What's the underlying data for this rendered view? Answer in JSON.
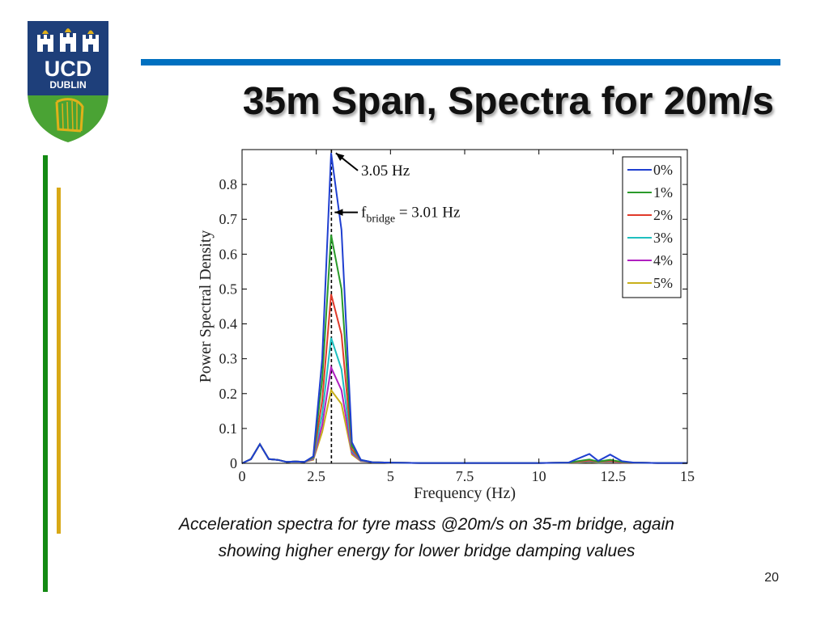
{
  "slide": {
    "title": "35m Span, Spectra for 20m/s",
    "caption_line1": "Acceleration spectra for tyre mass @20m/s on 35-m bridge, again",
    "caption_line2": "showing higher energy for lower bridge damping values",
    "page_number": "20"
  },
  "logo": {
    "text_top": "UCD",
    "text_bottom": "DUBLIN",
    "colors": {
      "blue": "#1e3f7a",
      "green": "#4aa334",
      "gold": "#e0b11a"
    }
  },
  "theme": {
    "rule_color": "#0070c0",
    "green_bar": "#138a13",
    "gold_bar": "#d8a816"
  },
  "chart_data": {
    "type": "line",
    "xlabel": "Frequency (Hz)",
    "ylabel": "Power Spectral Density",
    "xlim": [
      0,
      15
    ],
    "ylim": [
      0,
      0.9
    ],
    "xticks": [
      "0",
      "2.5",
      "5",
      "7.5",
      "10",
      "12.5",
      "15"
    ],
    "xtick_values": [
      0,
      2.5,
      5,
      7.5,
      10,
      12.5,
      15
    ],
    "yticks": [
      "0",
      "0.1",
      "0.2",
      "0.3",
      "0.4",
      "0.5",
      "0.6",
      "0.7",
      "0.8"
    ],
    "ytick_values": [
      0,
      0.1,
      0.2,
      0.3,
      0.4,
      0.5,
      0.6,
      0.7,
      0.8
    ],
    "grid": false,
    "legend": "top-right",
    "x": [
      0,
      0.3,
      0.6,
      0.9,
      1.2,
      1.5,
      1.8,
      2.1,
      2.4,
      2.7,
      3.0,
      3.35,
      3.7,
      4.0,
      4.4,
      5,
      6,
      7,
      8,
      9,
      10,
      11,
      11.3,
      11.7,
      12.0,
      12.4,
      12.8,
      13.2,
      14,
      15
    ],
    "series": [
      {
        "name": "0%",
        "color": "#1f3fd0",
        "values": [
          0,
          0.012,
          0.055,
          0.012,
          0.01,
          0.004,
          0.005,
          0.004,
          0.02,
          0.3,
          0.89,
          0.67,
          0.06,
          0.01,
          0.003,
          0.002,
          0.001,
          0.001,
          0.001,
          0.001,
          0.001,
          0.002,
          0.013,
          0.027,
          0.007,
          0.025,
          0.006,
          0.002,
          0.001,
          0.001
        ]
      },
      {
        "name": "1%",
        "color": "#2a9a2a",
        "values": [
          0,
          0.012,
          0.055,
          0.012,
          0.01,
          0.004,
          0.005,
          0.004,
          0.018,
          0.24,
          0.655,
          0.5,
          0.05,
          0.01,
          0.003,
          0.002,
          0.001,
          0.001,
          0.001,
          0.001,
          0.001,
          0.002,
          0.006,
          0.011,
          0.005,
          0.01,
          0.004,
          0.002,
          0.001,
          0.001
        ]
      },
      {
        "name": "2%",
        "color": "#e03a2a",
        "values": [
          0,
          0.012,
          0.055,
          0.012,
          0.01,
          0.004,
          0.005,
          0.004,
          0.016,
          0.18,
          0.485,
          0.37,
          0.04,
          0.009,
          0.003,
          0.002,
          0.001,
          0.001,
          0.001,
          0.001,
          0.001,
          0.002,
          0.004,
          0.008,
          0.004,
          0.007,
          0.003,
          0.002,
          0.001,
          0.001
        ]
      },
      {
        "name": "3%",
        "color": "#1fbfbf",
        "values": [
          0,
          0.012,
          0.055,
          0.012,
          0.01,
          0.004,
          0.005,
          0.004,
          0.014,
          0.14,
          0.36,
          0.27,
          0.035,
          0.008,
          0.003,
          0.002,
          0.001,
          0.001,
          0.001,
          0.001,
          0.001,
          0.002,
          0.003,
          0.006,
          0.003,
          0.005,
          0.003,
          0.002,
          0.001,
          0.001
        ]
      },
      {
        "name": "4%",
        "color": "#b020c0",
        "values": [
          0,
          0.012,
          0.055,
          0.012,
          0.01,
          0.004,
          0.005,
          0.004,
          0.012,
          0.11,
          0.275,
          0.21,
          0.03,
          0.007,
          0.003,
          0.002,
          0.001,
          0.001,
          0.001,
          0.001,
          0.001,
          0.002,
          0.003,
          0.005,
          0.003,
          0.004,
          0.002,
          0.002,
          0.001,
          0.001
        ]
      },
      {
        "name": "5%",
        "color": "#c8b01a",
        "values": [
          0,
          0.012,
          0.055,
          0.012,
          0.01,
          0.004,
          0.005,
          0.004,
          0.01,
          0.09,
          0.21,
          0.17,
          0.025,
          0.006,
          0.003,
          0.002,
          0.001,
          0.001,
          0.001,
          0.001,
          0.001,
          0.002,
          0.002,
          0.004,
          0.002,
          0.003,
          0.002,
          0.002,
          0.001,
          0.001
        ]
      }
    ],
    "annotations": [
      {
        "text": "3.05 Hz",
        "arrow_to": [
          3.05,
          0.89
        ],
        "text_at": [
          3.9,
          0.84
        ]
      },
      {
        "text_main": "f",
        "text_sub": "bridge",
        "text_tail": " = 3.01 Hz",
        "arrow_to": [
          3.01,
          0.72
        ],
        "text_at": [
          3.9,
          0.72
        ]
      }
    ],
    "vline_x": 3.01
  }
}
